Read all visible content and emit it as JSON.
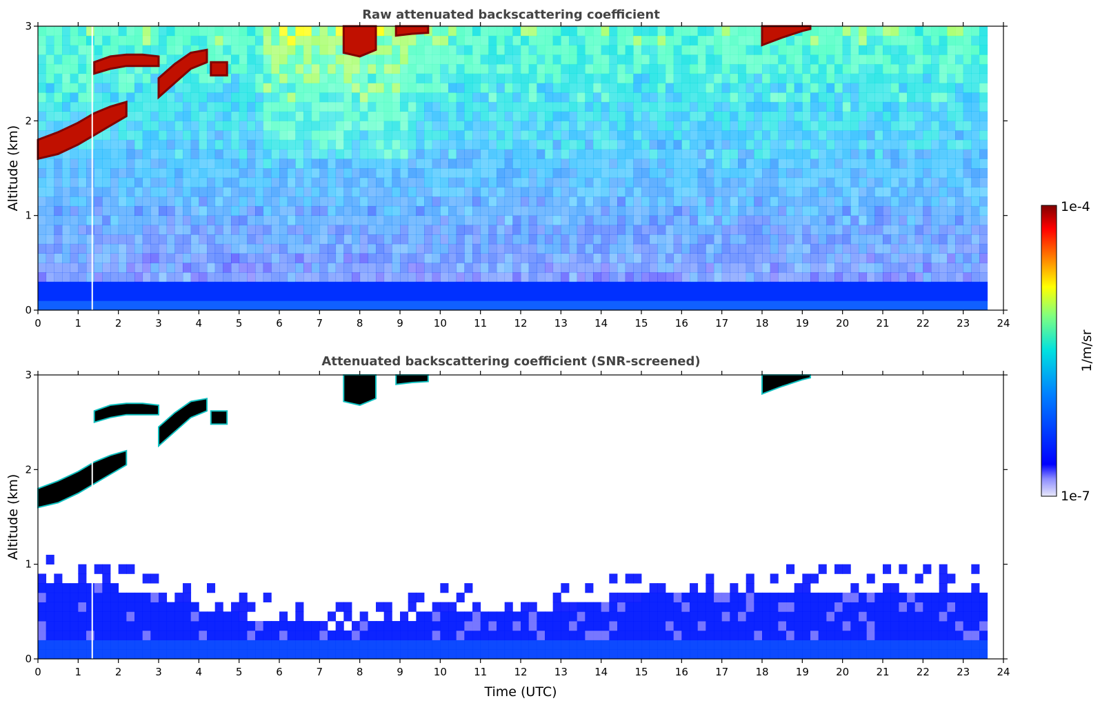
{
  "chart_data": [
    {
      "type": "heatmap",
      "title": "Raw attenuated backscattering coefficient",
      "xlabel": "",
      "ylabel": "Altitude (km)",
      "xlim": [
        0,
        24
      ],
      "ylim": [
        0,
        3
      ],
      "xticks": [
        "0",
        "1",
        "2",
        "3",
        "4",
        "5",
        "6",
        "7",
        "8",
        "9",
        "10",
        "11",
        "12",
        "13",
        "14",
        "15",
        "16",
        "17",
        "18",
        "19",
        "20",
        "21",
        "22",
        "23",
        "24"
      ],
      "yticks": [
        "0",
        "1",
        "2",
        "3"
      ],
      "data_end_hour": 23.6,
      "features": [
        {
          "kind": "cloud",
          "x": [
            0.0,
            0.5,
            1.0,
            1.4,
            1.8,
            2.2
          ],
          "base_km": [
            1.6,
            1.65,
            1.75,
            1.85,
            1.95,
            2.05
          ],
          "top_km": [
            1.8,
            1.88,
            1.98,
            2.08,
            2.15,
            2.2
          ]
        },
        {
          "kind": "cloud",
          "x": [
            1.4,
            1.8,
            2.2,
            2.6,
            3.0
          ],
          "base_km": [
            2.5,
            2.55,
            2.58,
            2.58,
            2.58
          ],
          "top_km": [
            2.62,
            2.68,
            2.7,
            2.7,
            2.68
          ]
        },
        {
          "kind": "cloud",
          "x": [
            3.0,
            3.4,
            3.8,
            4.2
          ],
          "base_km": [
            2.25,
            2.4,
            2.55,
            2.62
          ],
          "top_km": [
            2.45,
            2.6,
            2.72,
            2.75
          ]
        },
        {
          "kind": "cloud",
          "x": [
            4.3,
            4.7
          ],
          "base_km": [
            2.48,
            2.48
          ],
          "top_km": [
            2.62,
            2.62
          ]
        },
        {
          "kind": "cloud",
          "x": [
            7.6,
            8.0,
            8.4
          ],
          "base_km": [
            2.72,
            2.68,
            2.75
          ],
          "top_km": [
            3.0,
            3.0,
            3.0
          ]
        },
        {
          "kind": "cloud",
          "x": [
            8.9,
            9.3,
            9.7
          ],
          "base_km": [
            2.9,
            2.92,
            2.93
          ],
          "top_km": [
            3.0,
            3.0,
            3.0
          ]
        },
        {
          "kind": "cloud",
          "x": [
            18.0,
            18.5,
            19.0,
            19.2
          ],
          "base_km": [
            2.8,
            2.88,
            2.95,
            2.97
          ],
          "top_km": [
            3.0,
            3.0,
            3.0,
            3.0
          ]
        }
      ],
      "boundary_layer_top_km": {
        "x": [
          0,
          1,
          2,
          3,
          4,
          5,
          6,
          7,
          8,
          9,
          10,
          11,
          12,
          13,
          14,
          15,
          16,
          17,
          18,
          19,
          20,
          21,
          22,
          23,
          23.6
        ],
        "top": [
          0.8,
          0.8,
          0.75,
          0.65,
          0.55,
          0.45,
          0.38,
          0.35,
          0.35,
          0.38,
          0.55,
          0.48,
          0.45,
          0.52,
          0.6,
          0.65,
          0.68,
          0.65,
          0.72,
          0.75,
          0.75,
          0.72,
          0.72,
          0.72,
          0.7
        ]
      }
    },
    {
      "type": "heatmap",
      "title": "Attenuated backscattering coefficient (SNR-screened)",
      "xlabel": "Time (UTC)",
      "ylabel": "Altitude (km)",
      "xlim": [
        0,
        24
      ],
      "ylim": [
        0,
        3
      ],
      "xticks": [
        "0",
        "1",
        "2",
        "3",
        "4",
        "5",
        "6",
        "7",
        "8",
        "9",
        "10",
        "11",
        "12",
        "13",
        "14",
        "15",
        "16",
        "17",
        "18",
        "19",
        "20",
        "21",
        "22",
        "23",
        "24"
      ],
      "yticks": [
        "0",
        "1",
        "2",
        "3"
      ],
      "data_end_hour": 23.6
    }
  ],
  "colorbar": {
    "max_label": "1e-4",
    "min_label": "1e-7",
    "label": "1/m/sr",
    "scale": "log",
    "range": [
      1e-07,
      0.0001
    ]
  }
}
